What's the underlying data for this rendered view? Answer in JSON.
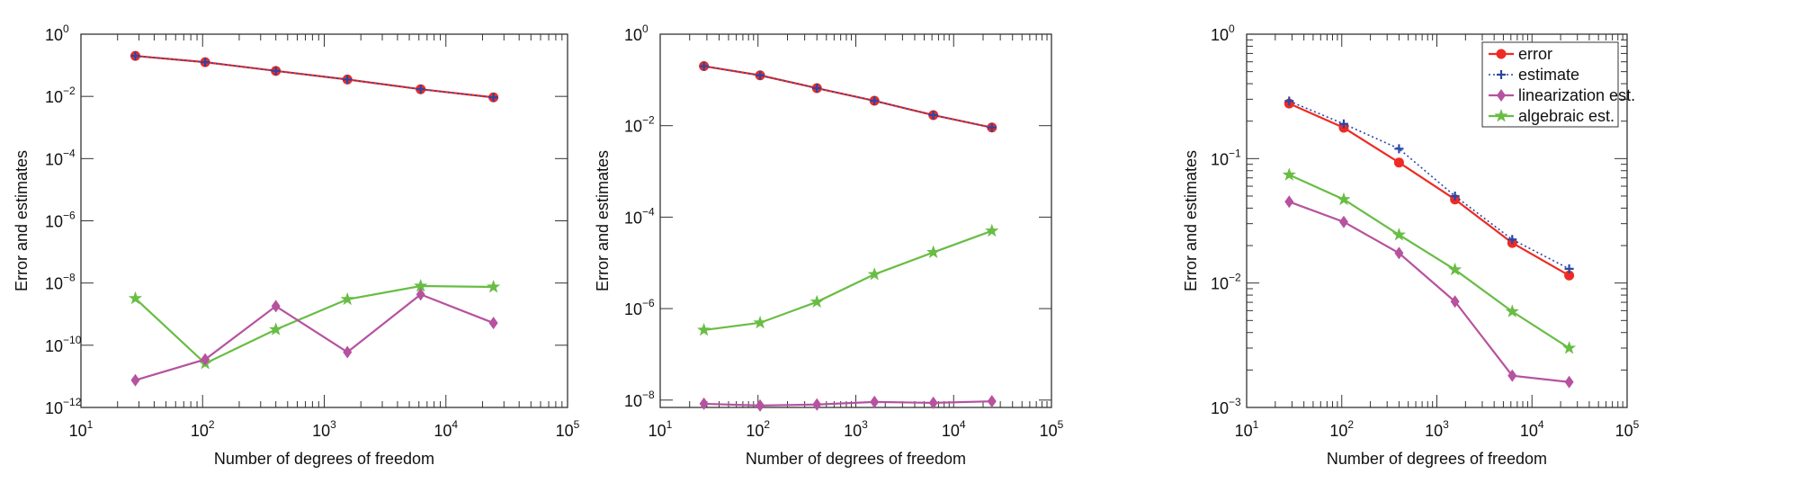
{
  "colors": {
    "error": "#ee2b24",
    "estimate": "#2a47a6",
    "linearization": "#b6529f",
    "algebraic": "#68bd44",
    "axis": "#333333"
  },
  "legend": {
    "placement": "top-right (third panel)",
    "entries": [
      {
        "key": "error",
        "label": "error",
        "marker": "circle",
        "line": "solid"
      },
      {
        "key": "estimate",
        "label": "estimate",
        "marker": "plus",
        "line": "dotted"
      },
      {
        "key": "linearization",
        "label": "linearization est.",
        "marker": "diamond",
        "line": "solid"
      },
      {
        "key": "algebraic",
        "label": "algebraic est.",
        "marker": "star",
        "line": "solid"
      }
    ]
  },
  "chart_data": [
    {
      "type": "line",
      "xlabel": "Number of degrees of freedom",
      "ylabel": "Error and estimates",
      "xscale": "log",
      "yscale": "log",
      "xlim": [
        10,
        100000
      ],
      "ylim": [
        1e-12,
        1
      ],
      "xticks": [
        1,
        2,
        3,
        4,
        5
      ],
      "yticks": [
        -12,
        -10,
        -8,
        -6,
        -4,
        -2,
        0
      ],
      "grid": false,
      "x": [
        28,
        105,
        400,
        1550,
        6200,
        24600
      ],
      "series": [
        {
          "key": "error",
          "values": [
            0.2,
            0.126,
            0.066,
            0.035,
            0.017,
            0.0093
          ]
        },
        {
          "key": "estimate",
          "values": [
            0.2,
            0.126,
            0.066,
            0.035,
            0.017,
            0.0093
          ]
        },
        {
          "key": "linearization",
          "values": [
            7.5e-12,
            3.5e-11,
            1.8e-09,
            6e-11,
            4.3e-09,
            5.2e-10
          ]
        },
        {
          "key": "algebraic",
          "values": [
            3.2e-09,
            2.6e-11,
            3.2e-10,
            3e-09,
            8e-09,
            7.5e-09
          ]
        }
      ]
    },
    {
      "type": "line",
      "xlabel": "Number of degrees of freedom",
      "ylabel": "Error and estimates",
      "xscale": "log",
      "yscale": "log",
      "xlim": [
        10,
        100000
      ],
      "ylim": [
        6.9e-09,
        1
      ],
      "xticks": [
        1,
        2,
        3,
        4,
        5
      ],
      "yticks": [
        -8,
        -6,
        -4,
        -2,
        0
      ],
      "grid": false,
      "x": [
        28,
        105,
        400,
        1550,
        6200,
        24600
      ],
      "series": [
        {
          "key": "error",
          "values": [
            0.2,
            0.126,
            0.066,
            0.035,
            0.017,
            0.0091
          ]
        },
        {
          "key": "estimate",
          "values": [
            0.2,
            0.126,
            0.066,
            0.035,
            0.017,
            0.0091
          ]
        },
        {
          "key": "linearization",
          "values": [
            8.3e-09,
            7.6e-09,
            8e-09,
            9.1e-09,
            8.7e-09,
            9.4e-09
          ]
        },
        {
          "key": "algebraic",
          "values": [
            3.4e-07,
            4.9e-07,
            1.4e-06,
            5.6e-06,
            1.7e-05,
            5e-05
          ]
        }
      ]
    },
    {
      "type": "line",
      "xlabel": "Number of degrees of freedom",
      "ylabel": "Error and estimates",
      "xscale": "log",
      "yscale": "log",
      "xlim": [
        10,
        100000
      ],
      "ylim": [
        0.001,
        1
      ],
      "xticks": [
        1,
        2,
        3,
        4,
        5
      ],
      "yticks": [
        -3,
        -2,
        -1,
        0
      ],
      "grid": false,
      "legend": true,
      "x": [
        28,
        105,
        400,
        1550,
        6200,
        24600
      ],
      "series": [
        {
          "key": "error",
          "values": [
            0.277,
            0.177,
            0.093,
            0.047,
            0.021,
            0.0115
          ]
        },
        {
          "key": "estimate",
          "values": [
            0.29,
            0.19,
            0.12,
            0.05,
            0.0224,
            0.013
          ]
        },
        {
          "key": "linearization",
          "values": [
            0.045,
            0.031,
            0.0174,
            0.0071,
            0.0018,
            0.0016
          ]
        },
        {
          "key": "algebraic",
          "values": [
            0.074,
            0.047,
            0.0244,
            0.0128,
            0.0059,
            0.003
          ]
        }
      ]
    }
  ]
}
